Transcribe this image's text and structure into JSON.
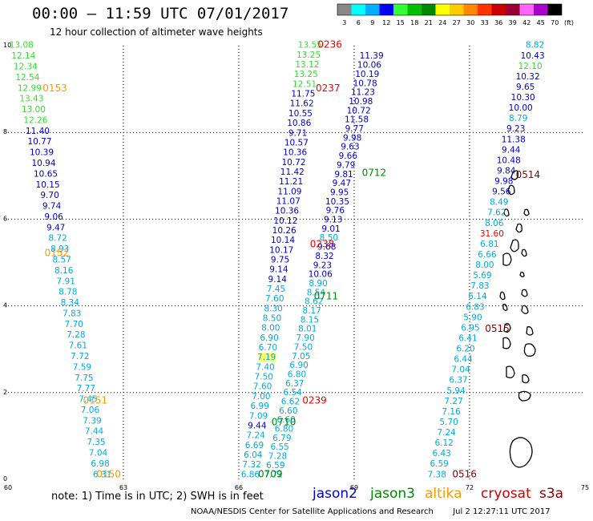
{
  "header": {
    "title": "00:00 – 11:59 UTC 07/01/2017",
    "subtitle": "12 hour collection of altimeter wave heights"
  },
  "colorbar": {
    "labels": [
      "3",
      "6",
      "9",
      "12",
      "15",
      "18",
      "21",
      "24",
      "27",
      "30",
      "33",
      "36",
      "39",
      "42",
      "45",
      "70"
    ],
    "unit": "(ft)",
    "colors": [
      "#888888",
      "#00ffff",
      "#00b0ff",
      "#0000ff",
      "#33ff33",
      "#00c000",
      "#008800",
      "#ffff00",
      "#ffcc00",
      "#ff8800",
      "#ff3300",
      "#cc0000",
      "#990033",
      "#ff66ff",
      "#aa00cc",
      "#000000"
    ]
  },
  "note": "note:  1) Time is in UTC;  2) SWH is in feet",
  "legend": [
    {
      "name": "jason2",
      "color": "#0000cc"
    },
    {
      "name": "jason3",
      "color": "#008800"
    },
    {
      "name": "altika",
      "color": "#ff9900"
    },
    {
      "name": "cryosat",
      "color": "#cc0000"
    },
    {
      "name": "s3a",
      "color": "#880000"
    }
  ],
  "footer": {
    "org": "NOAA/NESDIS Center for Satellite Applications and Research",
    "timestamp": "Jul  2 12:27:11 UTC 2017"
  },
  "chart_data": {
    "type": "scatter",
    "title": "00:00 – 11:59 UTC 07/01/2017",
    "subtitle": "12 hour collection of altimeter wave heights",
    "xlim": [
      60,
      75
    ],
    "ylim": [
      0,
      10
    ],
    "x_ticks": [
      "60",
      "63",
      "66",
      "69",
      "72",
      "75"
    ],
    "y_ticks": [
      "0",
      "2",
      "4",
      "6",
      "8",
      "10"
    ],
    "grid": true,
    "tracks": [
      {
        "name": "track-0150-0153",
        "start": [
          60.35,
          9.95
        ],
        "end": [
          62.45,
          0.05
        ],
        "color": "multi",
        "values": [
          13.08,
          12.14,
          12.34,
          12.54,
          12.99,
          13.43,
          13.0,
          12.26,
          11.4,
          10.77,
          10.39,
          10.94,
          10.65,
          10.15,
          9.7,
          9.74,
          9.06,
          9.47,
          8.72,
          8.93,
          8.57,
          8.16,
          7.91,
          8.78,
          8.34,
          7.83,
          7.7,
          7.28,
          7.61,
          7.72,
          7.59,
          7.75,
          7.77,
          7.45,
          7.06,
          7.39,
          7.44,
          7.35,
          7.04,
          6.98,
          6.31
        ],
        "colors": [
          "g",
          "g",
          "g",
          "g",
          "g",
          "g",
          "g",
          "g",
          "b",
          "b",
          "b",
          "b",
          "b",
          "b",
          "b",
          "b",
          "b",
          "b",
          "c",
          "c",
          "c",
          "c",
          "c",
          "c",
          "c",
          "c",
          "c",
          "c",
          "c",
          "c",
          "c",
          "c",
          "c",
          "c",
          "c",
          "c",
          "c",
          "c",
          "c",
          "c",
          "c"
        ]
      },
      {
        "name": "track-0709-0711",
        "start": [
          67.85,
          9.95
        ],
        "end": [
          66.3,
          0.05
        ],
        "color": "multi",
        "values": [
          13.55,
          13.25,
          13.12,
          13.25,
          12.51,
          11.75,
          11.62,
          10.55,
          10.86,
          9.71,
          10.57,
          10.36,
          10.72,
          11.42,
          11.21,
          11.09,
          11.07,
          10.36,
          10.12,
          10.26,
          10.14,
          10.17,
          9.75,
          9.14,
          9.14,
          7.45,
          7.6,
          8.3,
          8.5,
          8.0,
          6.9,
          6.7,
          7.19,
          7.4,
          7.5,
          7.6,
          7.0,
          6.99,
          7.09,
          9.44,
          7.24,
          6.69,
          6.04,
          7.32,
          6.86
        ],
        "colors": [
          "g",
          "g",
          "g",
          "g",
          "g",
          "b",
          "b",
          "b",
          "b",
          "b",
          "b",
          "b",
          "b",
          "b",
          "b",
          "b",
          "b",
          "b",
          "b",
          "b",
          "b",
          "b",
          "b",
          "b",
          "b",
          "c",
          "c",
          "c",
          "c",
          "c",
          "c",
          "c",
          "y",
          "c",
          "c",
          "c",
          "c",
          "c",
          "c",
          "b",
          "c",
          "c",
          "c",
          "c",
          "c"
        ]
      },
      {
        "name": "track-0236-0239",
        "start": [
          69.45,
          9.7
        ],
        "end": [
          66.9,
          0.05
        ],
        "color": "multi",
        "values": [
          11.39,
          10.06,
          10.19,
          10.78,
          11.23,
          10.98,
          10.72,
          11.58,
          9.77,
          9.98,
          9.63,
          9.66,
          9.79,
          9.81,
          9.47,
          9.95,
          10.35,
          9.76,
          9.13,
          9.01,
          8.5,
          9.68,
          8.32,
          9.23,
          10.06,
          8.9,
          8.54,
          8.62,
          8.17,
          8.15,
          8.01,
          7.9,
          7.5,
          7.05,
          6.9,
          6.8,
          6.37,
          6.54,
          6.62,
          6.6,
          6.6,
          6.8,
          6.79,
          6.55,
          7.28,
          6.59,
          7.72
        ],
        "colors": [
          "b",
          "b",
          "b",
          "b",
          "b",
          "b",
          "b",
          "b",
          "b",
          "b",
          "b",
          "b",
          "b",
          "b",
          "b",
          "b",
          "b",
          "b",
          "b",
          "b",
          "c",
          "b",
          "b",
          "b",
          "b",
          "c",
          "c",
          "c",
          "c",
          "c",
          "c",
          "c",
          "c",
          "c",
          "c",
          "c",
          "c",
          "c",
          "c",
          "c",
          "c",
          "c",
          "c",
          "c",
          "c",
          "c",
          "c"
        ]
      },
      {
        "name": "track-0514-0516",
        "start": [
          73.7,
          9.95
        ],
        "end": [
          71.15,
          0.05
        ],
        "color": "multi",
        "values": [
          8.82,
          10.43,
          12.1,
          10.32,
          9.65,
          10.3,
          10.0,
          8.79,
          9.23,
          11.38,
          9.44,
          10.48,
          9.84,
          9.98,
          9.56,
          8.49,
          7.62,
          8.06,
          31.6,
          6.81,
          6.66,
          8.0,
          5.69,
          7.83,
          6.14,
          6.83,
          5.9,
          6.95,
          6.41,
          6.2,
          6.44,
          7.04,
          6.37,
          5.94,
          7.27,
          7.16,
          5.7,
          7.24,
          6.12,
          6.43,
          6.59,
          7.38
        ],
        "colors": [
          "c",
          "b",
          "g",
          "b",
          "b",
          "b",
          "b",
          "c",
          "b",
          "b",
          "b",
          "b",
          "b",
          "b",
          "b",
          "c",
          "c",
          "c",
          "r",
          "c",
          "c",
          "c",
          "c",
          "c",
          "c",
          "c",
          "c",
          "c",
          "c",
          "c",
          "c",
          "c",
          "c",
          "c",
          "c",
          "c",
          "c",
          "c",
          "c",
          "c",
          "c",
          "c"
        ]
      }
    ],
    "pass_labels": [
      {
        "text": "0153",
        "x": 60.9,
        "y": 8.95,
        "sat": "altika"
      },
      {
        "text": "0152",
        "x": 60.95,
        "y": 5.15,
        "sat": "altika"
      },
      {
        "text": "0151",
        "x": 61.95,
        "y": 1.75,
        "sat": "altika"
      },
      {
        "text": "0150",
        "x": 62.3,
        "y": 0.05,
        "sat": "altika"
      },
      {
        "text": "0236",
        "x": 68.05,
        "y": 9.95,
        "sat": "cryosat"
      },
      {
        "text": "0237",
        "x": 68.0,
        "y": 8.95,
        "sat": "cryosat"
      },
      {
        "text": "0238",
        "x": 67.85,
        "y": 5.35,
        "sat": "cryosat"
      },
      {
        "text": "0239",
        "x": 67.65,
        "y": 1.75,
        "sat": "cryosat"
      },
      {
        "text": "0712",
        "x": 69.2,
        "y": 7.0,
        "sat": "jason3"
      },
      {
        "text": "0711",
        "x": 67.95,
        "y": 4.15,
        "sat": "jason3"
      },
      {
        "text": "0710",
        "x": 66.85,
        "y": 1.25,
        "sat": "jason3"
      },
      {
        "text": "0709",
        "x": 66.5,
        "y": 0.05,
        "sat": "jason3"
      },
      {
        "text": "0514",
        "x": 73.2,
        "y": 6.95,
        "sat": "s3a"
      },
      {
        "text": "0515",
        "x": 72.4,
        "y": 3.4,
        "sat": "s3a"
      },
      {
        "text": "0516",
        "x": 71.55,
        "y": 0.05,
        "sat": "s3a"
      }
    ]
  }
}
